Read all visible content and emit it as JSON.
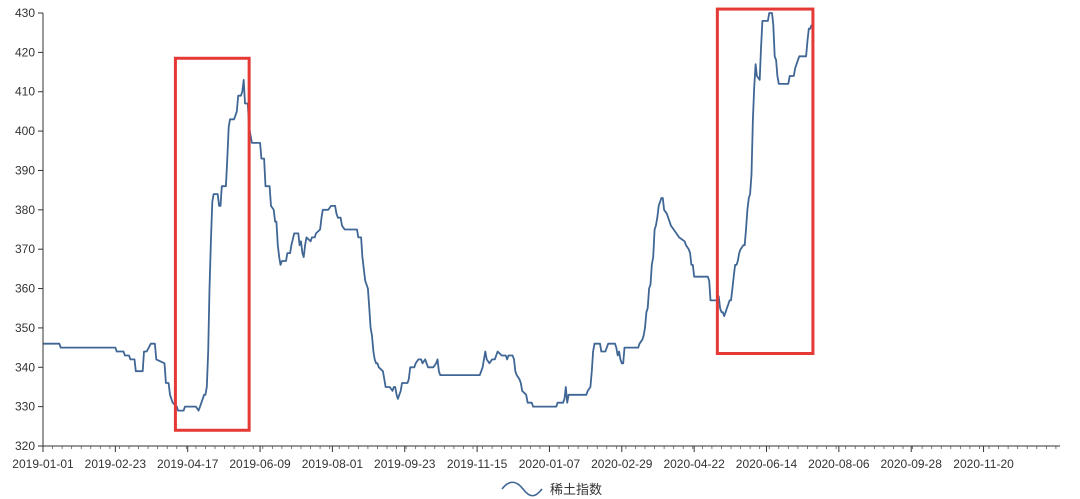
{
  "chart_data": {
    "type": "line",
    "title": "",
    "xlabel": "",
    "ylabel": "",
    "ylim": [
      320,
      430
    ],
    "y_ticks": [
      320,
      330,
      340,
      350,
      360,
      370,
      380,
      390,
      400,
      410,
      420,
      430
    ],
    "x_tick_labels": [
      "2019-01-01",
      "2019-02-23",
      "2019-04-17",
      "2019-06-09",
      "2019-08-01",
      "2019-09-23",
      "2019-11-15",
      "2020-01-07",
      "2020-02-29",
      "2020-04-22",
      "2020-06-14",
      "2020-08-06",
      "2020-09-28",
      "2020-11-20"
    ],
    "x_tick_positions": [
      0,
      53,
      106,
      159,
      212,
      265,
      318,
      371,
      424,
      477,
      530,
      583,
      636,
      689
    ],
    "x_end": 745,
    "legend": {
      "position": "bottom-center"
    },
    "grid": false,
    "line_color": "#3f6695",
    "highlight_color": "#e53935",
    "series": [
      {
        "name": "稀土指数",
        "points": [
          [
            0,
            346
          ],
          [
            12,
            346
          ],
          [
            13,
            345
          ],
          [
            53,
            345
          ],
          [
            54,
            344
          ],
          [
            59,
            344
          ],
          [
            60,
            343
          ],
          [
            63,
            343
          ],
          [
            64,
            342
          ],
          [
            67,
            342
          ],
          [
            68,
            339
          ],
          [
            73,
            339
          ],
          [
            74,
            344
          ],
          [
            76,
            344
          ],
          [
            79,
            346
          ],
          [
            82,
            346
          ],
          [
            83,
            342
          ],
          [
            89,
            341
          ],
          [
            90,
            336
          ],
          [
            92,
            336
          ],
          [
            93,
            333
          ],
          [
            95,
            331
          ],
          [
            98,
            330
          ],
          [
            99,
            329
          ],
          [
            103,
            329
          ],
          [
            104,
            330
          ],
          [
            112,
            330
          ],
          [
            114,
            329
          ],
          [
            116,
            331
          ],
          [
            118,
            333
          ],
          [
            119,
            333
          ],
          [
            120,
            335
          ],
          [
            121,
            344
          ],
          [
            122,
            360
          ],
          [
            123,
            372
          ],
          [
            124,
            382
          ],
          [
            125,
            384
          ],
          [
            128,
            384
          ],
          [
            129,
            381
          ],
          [
            130,
            381
          ],
          [
            131,
            386
          ],
          [
            134,
            386
          ],
          [
            135,
            393
          ],
          [
            136,
            401
          ],
          [
            137,
            403
          ],
          [
            140,
            403
          ],
          [
            142,
            405
          ],
          [
            143,
            409
          ],
          [
            145,
            409
          ],
          [
            146,
            410
          ],
          [
            147,
            413
          ],
          [
            148,
            407
          ],
          [
            150,
            407
          ],
          [
            151,
            401
          ],
          [
            152,
            399
          ],
          [
            153,
            397
          ],
          [
            159,
            397
          ],
          [
            160,
            393
          ],
          [
            162,
            393
          ],
          [
            163,
            386
          ],
          [
            166,
            386
          ],
          [
            167,
            381
          ],
          [
            169,
            380
          ],
          [
            170,
            377
          ],
          [
            171,
            377
          ],
          [
            172,
            371
          ],
          [
            173,
            368
          ],
          [
            174,
            366
          ],
          [
            175,
            367
          ],
          [
            178,
            367
          ],
          [
            179,
            369
          ],
          [
            181,
            369
          ],
          [
            182,
            371
          ],
          [
            184,
            374
          ],
          [
            187,
            374
          ],
          [
            188,
            371
          ],
          [
            189,
            372
          ],
          [
            190,
            369
          ],
          [
            191,
            368
          ],
          [
            192,
            371
          ],
          [
            193,
            373
          ],
          [
            196,
            372
          ],
          [
            197,
            373
          ],
          [
            199,
            373
          ],
          [
            200,
            374
          ],
          [
            203,
            375
          ],
          [
            204,
            378
          ],
          [
            205,
            380
          ],
          [
            209,
            380
          ],
          [
            211,
            381
          ],
          [
            214,
            381
          ],
          [
            215,
            379
          ],
          [
            216,
            378
          ],
          [
            218,
            378
          ],
          [
            219,
            376
          ],
          [
            221,
            375
          ],
          [
            230,
            375
          ],
          [
            231,
            373
          ],
          [
            233,
            373
          ],
          [
            234,
            368
          ],
          [
            236,
            362
          ],
          [
            238,
            360
          ],
          [
            239,
            355
          ],
          [
            240,
            350
          ],
          [
            241,
            348
          ],
          [
            242,
            344
          ],
          [
            243,
            342
          ],
          [
            244,
            341
          ],
          [
            245,
            341
          ],
          [
            246,
            340
          ],
          [
            249,
            339
          ],
          [
            250,
            337
          ],
          [
            251,
            335
          ],
          [
            254,
            335
          ],
          [
            256,
            334
          ],
          [
            257,
            335
          ],
          [
            258,
            335
          ],
          [
            259,
            333
          ],
          [
            260,
            332
          ],
          [
            261,
            333
          ],
          [
            262,
            334
          ],
          [
            263,
            336
          ],
          [
            267,
            336
          ],
          [
            268,
            337
          ],
          [
            269,
            340
          ],
          [
            272,
            340
          ],
          [
            273,
            341
          ],
          [
            275,
            342
          ],
          [
            277,
            342
          ],
          [
            278,
            341
          ],
          [
            280,
            342
          ],
          [
            281,
            341
          ],
          [
            282,
            340
          ],
          [
            286,
            340
          ],
          [
            288,
            341
          ],
          [
            289,
            342
          ],
          [
            290,
            339
          ],
          [
            291,
            338
          ],
          [
            320,
            338
          ],
          [
            321,
            339
          ],
          [
            322,
            340
          ],
          [
            324,
            344
          ],
          [
            325,
            342
          ],
          [
            327,
            341
          ],
          [
            329,
            342
          ],
          [
            331,
            342
          ],
          [
            332,
            343
          ],
          [
            333,
            344
          ],
          [
            336,
            343
          ],
          [
            339,
            343
          ],
          [
            340,
            342
          ],
          [
            341,
            343
          ],
          [
            344,
            343
          ],
          [
            345,
            342
          ],
          [
            346,
            339
          ],
          [
            347,
            338
          ],
          [
            349,
            337
          ],
          [
            350,
            336
          ],
          [
            351,
            334
          ],
          [
            354,
            333
          ],
          [
            355,
            331
          ],
          [
            358,
            331
          ],
          [
            359,
            330
          ],
          [
            376,
            330
          ],
          [
            377,
            331
          ],
          [
            381,
            331
          ],
          [
            382,
            332
          ],
          [
            383,
            335
          ],
          [
            384,
            331
          ],
          [
            385,
            333
          ],
          [
            398,
            333
          ],
          [
            399,
            334
          ],
          [
            401,
            335
          ],
          [
            402,
            339
          ],
          [
            403,
            344
          ],
          [
            404,
            346
          ],
          [
            408,
            346
          ],
          [
            409,
            344
          ],
          [
            412,
            344
          ],
          [
            413,
            345
          ],
          [
            414,
            346
          ],
          [
            419,
            346
          ],
          [
            420,
            345
          ],
          [
            421,
            343
          ],
          [
            422,
            344
          ],
          [
            423,
            342
          ],
          [
            424,
            341
          ],
          [
            425,
            341
          ],
          [
            426,
            345
          ],
          [
            436,
            345
          ],
          [
            437,
            346
          ],
          [
            439,
            347
          ],
          [
            440,
            348
          ],
          [
            441,
            350
          ],
          [
            442,
            354
          ],
          [
            443,
            355
          ],
          [
            444,
            360
          ],
          [
            445,
            361
          ],
          [
            446,
            366
          ],
          [
            447,
            368
          ],
          [
            448,
            375
          ],
          [
            449,
            376
          ],
          [
            450,
            378
          ],
          [
            451,
            381
          ],
          [
            453,
            383
          ],
          [
            454,
            383
          ],
          [
            455,
            380
          ],
          [
            457,
            379
          ],
          [
            458,
            378
          ],
          [
            459,
            377
          ],
          [
            460,
            376
          ],
          [
            462,
            375
          ],
          [
            464,
            374
          ],
          [
            466,
            373
          ],
          [
            470,
            372
          ],
          [
            471,
            371
          ],
          [
            473,
            370
          ],
          [
            474,
            369
          ],
          [
            475,
            366
          ],
          [
            476,
            366
          ],
          [
            477,
            363
          ],
          [
            487,
            363
          ],
          [
            488,
            362
          ],
          [
            489,
            357
          ],
          [
            494,
            357
          ],
          [
            495,
            358
          ],
          [
            496,
            355
          ],
          [
            497,
            354
          ],
          [
            498,
            354
          ],
          [
            499,
            353
          ],
          [
            500,
            354
          ],
          [
            501,
            355
          ],
          [
            502,
            356
          ],
          [
            503,
            357
          ],
          [
            504,
            357
          ],
          [
            505,
            360
          ],
          [
            506,
            363
          ],
          [
            507,
            366
          ],
          [
            508,
            366
          ],
          [
            509,
            367
          ],
          [
            510,
            369
          ],
          [
            511,
            370
          ],
          [
            513,
            371
          ],
          [
            514,
            371
          ],
          [
            515,
            375
          ],
          [
            516,
            380
          ],
          [
            517,
            383
          ],
          [
            518,
            384
          ],
          [
            519,
            389
          ],
          [
            520,
            403
          ],
          [
            521,
            411
          ],
          [
            522,
            417
          ],
          [
            523,
            414
          ],
          [
            525,
            413
          ],
          [
            526,
            421
          ],
          [
            527,
            428
          ],
          [
            531,
            428
          ],
          [
            532,
            430
          ],
          [
            534,
            430
          ],
          [
            535,
            427
          ],
          [
            536,
            419
          ],
          [
            537,
            418
          ],
          [
            538,
            414
          ],
          [
            539,
            412
          ],
          [
            546,
            412
          ],
          [
            547,
            414
          ],
          [
            550,
            414
          ],
          [
            551,
            416
          ],
          [
            553,
            418
          ],
          [
            554,
            419
          ],
          [
            559,
            419
          ],
          [
            560,
            423
          ],
          [
            561,
            426
          ],
          [
            562,
            426
          ],
          [
            563,
            427
          ]
        ]
      }
    ],
    "highlights": [
      {
        "x_start": 97,
        "x_end": 151,
        "y_low": 324,
        "y_high": 418.5
      },
      {
        "x_start": 494,
        "x_end": 564,
        "y_low": 343.5,
        "y_high": 431
      }
    ]
  }
}
